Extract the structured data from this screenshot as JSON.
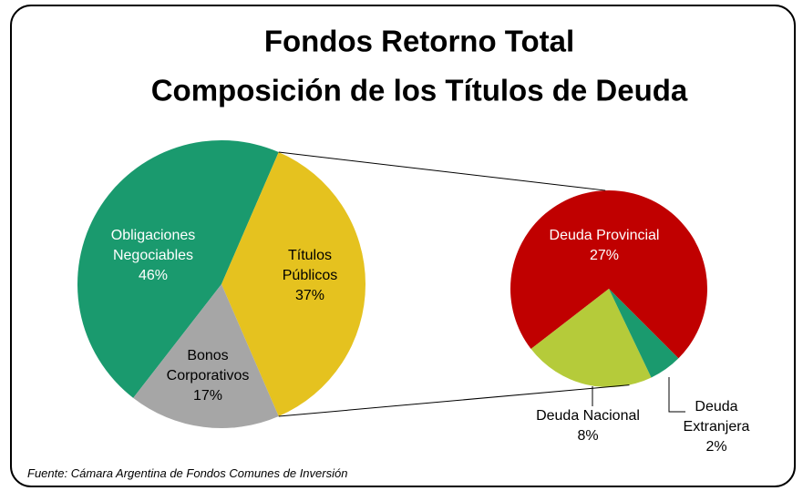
{
  "chart_data": [
    {
      "type": "pie",
      "title": "Fondos Retorno Total",
      "subtitle": "Composición de los Títulos de Deuda",
      "categories": [
        "Obligaciones Negociables",
        "Títulos Públicos",
        "Bonos Corporativos"
      ],
      "values": [
        46,
        37,
        17
      ],
      "value_labels": [
        "46%",
        "37%",
        "17%"
      ],
      "colors": [
        "#1a9a6e",
        "#e5c21f",
        "#a6a6a6"
      ]
    },
    {
      "type": "pie",
      "categories": [
        "Deuda Provincial",
        "Deuda Nacional",
        "Deuda Extranjera"
      ],
      "values": [
        27,
        8,
        2
      ],
      "value_labels": [
        "27%",
        "8%",
        "2%"
      ],
      "colors": [
        "#c00000",
        "#b5cb3a",
        "#1a9a6e"
      ]
    }
  ],
  "source": "Fuente:  Cámara Argentina de Fondos Comunes de Inversión"
}
